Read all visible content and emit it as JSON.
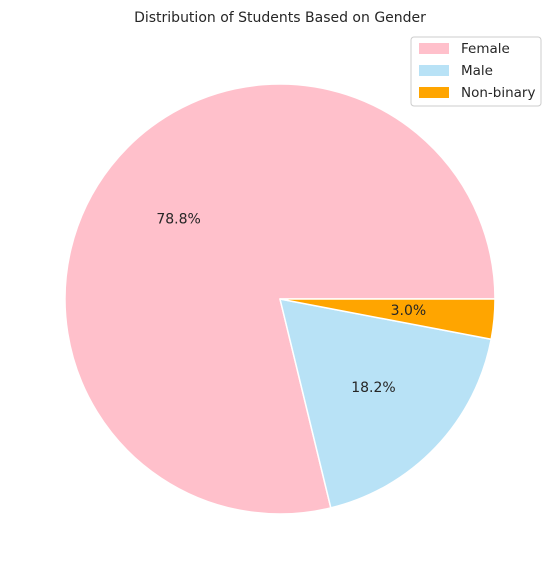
{
  "chart_data": {
    "type": "pie",
    "title": "Distribution of Students Based on Gender",
    "labels": [
      "Female",
      "Male",
      "Non-binary"
    ],
    "values": [
      78.8,
      18.2,
      3.0
    ],
    "autopct": [
      "78.8%",
      "18.2%",
      "3.0%"
    ],
    "colors": [
      "#ffc0cb",
      "#b8e2f6",
      "#ffa500"
    ],
    "start_angle_deg": 0,
    "direction": "counterclockwise",
    "edge_color": "#ffffff",
    "legend": {
      "placement": "upper right",
      "entries": [
        "Female",
        "Male",
        "Non-binary"
      ]
    }
  }
}
